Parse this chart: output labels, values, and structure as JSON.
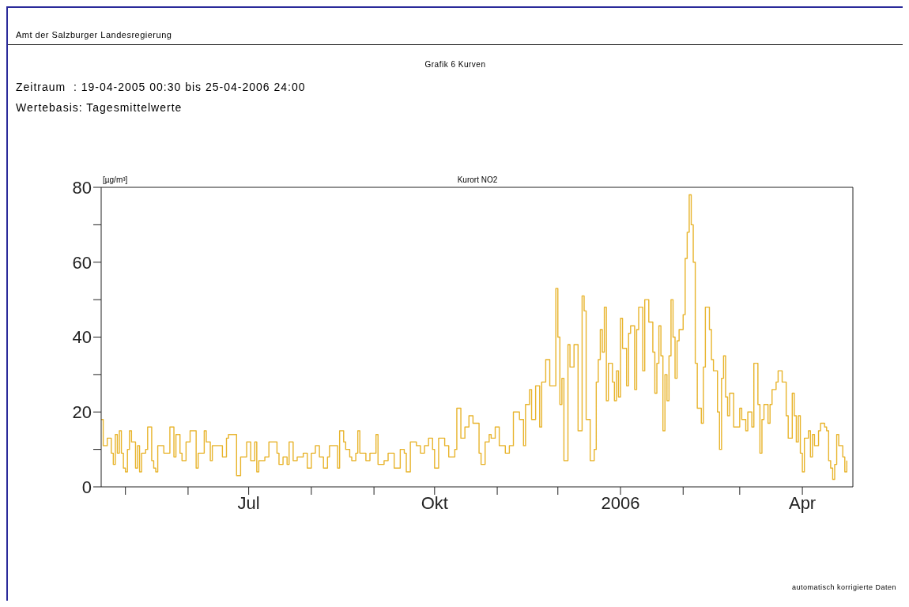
{
  "chart_data": {
    "type": "step",
    "title": "Kurort NO2",
    "subtitle": "Grafik 6 Kurven",
    "ylabel": "[µg/m³]",
    "annotations": [
      "Amt der Salzburger Landesregierung",
      "Zeitraum  : 19-04-2005 00:30 bis 25-04-2006 24:00",
      "Wertebasis: Tagesmittelwerte",
      "automatisch korrigierte Daten"
    ],
    "color": "#e8b42c",
    "marker": "none",
    "line_style": "solid",
    "xlim": [
      "2005-04-19",
      "2006-04-26"
    ],
    "xticks": [
      {
        "value": "2005-05-01",
        "label": null
      },
      {
        "value": "2005-06-01",
        "label": null
      },
      {
        "value": "2005-07-01",
        "label": "Jul"
      },
      {
        "value": "2005-08-01",
        "label": null
      },
      {
        "value": "2005-09-01",
        "label": null
      },
      {
        "value": "2005-10-01",
        "label": "Okt"
      },
      {
        "value": "2005-11-01",
        "label": null
      },
      {
        "value": "2005-12-01",
        "label": null
      },
      {
        "value": "2006-01-01",
        "label": "2006"
      },
      {
        "value": "2006-02-01",
        "label": null
      },
      {
        "value": "2006-03-01",
        "label": null
      },
      {
        "value": "2006-04-01",
        "label": "Apr"
      }
    ],
    "ylim": [
      0,
      80
    ],
    "yticks": [
      0,
      {
        "value": 10,
        "label": null
      },
      20,
      {
        "value": 30,
        "label": null
      },
      40,
      {
        "value": 50,
        "label": null
      },
      60,
      {
        "value": 70,
        "label": null
      },
      80
    ],
    "x": [
      "2005-04-19",
      "2005-04-20",
      "2005-04-22",
      "2005-04-24",
      "2005-04-25",
      "2005-04-26",
      "2005-04-27",
      "2005-04-28",
      "2005-04-29",
      "2005-04-30",
      "2005-05-01",
      "2005-05-02",
      "2005-05-03",
      "2005-05-04",
      "2005-05-06",
      "2005-05-07",
      "2005-05-08",
      "2005-05-09",
      "2005-05-11",
      "2005-05-12",
      "2005-05-14",
      "2005-05-15",
      "2005-05-16",
      "2005-05-17",
      "2005-05-20",
      "2005-05-23",
      "2005-05-25",
      "2005-05-26",
      "2005-05-28",
      "2005-05-29",
      "2005-05-31",
      "2005-06-02",
      "2005-06-05",
      "2005-06-06",
      "2005-06-09",
      "2005-06-10",
      "2005-06-12",
      "2005-06-13",
      "2005-06-16",
      "2005-06-18",
      "2005-06-20",
      "2005-06-21",
      "2005-06-25",
      "2005-06-27",
      "2005-06-30",
      "2005-07-02",
      "2005-07-04",
      "2005-07-05",
      "2005-07-06",
      "2005-07-09",
      "2005-07-11",
      "2005-07-15",
      "2005-07-16",
      "2005-07-18",
      "2005-07-20",
      "2005-07-21",
      "2005-07-23",
      "2005-07-25",
      "2005-07-28",
      "2005-07-30",
      "2005-08-01",
      "2005-08-03",
      "2005-08-05",
      "2005-08-07",
      "2005-08-09",
      "2005-08-10",
      "2005-08-13",
      "2005-08-14",
      "2005-08-15",
      "2005-08-17",
      "2005-08-18",
      "2005-08-20",
      "2005-08-21",
      "2005-08-23",
      "2005-08-24",
      "2005-08-25",
      "2005-08-28",
      "2005-08-30",
      "2005-09-02",
      "2005-09-03",
      "2005-09-06",
      "2005-09-08",
      "2005-09-11",
      "2005-09-14",
      "2005-09-16",
      "2005-09-17",
      "2005-09-19",
      "2005-09-22",
      "2005-09-24",
      "2005-09-26",
      "2005-09-28",
      "2005-09-30",
      "2005-10-01",
      "2005-10-03",
      "2005-10-06",
      "2005-10-08",
      "2005-10-11",
      "2005-10-12",
      "2005-10-14",
      "2005-10-16",
      "2005-10-18",
      "2005-10-20",
      "2005-10-23",
      "2005-10-24",
      "2005-10-26",
      "2005-10-28",
      "2005-10-29",
      "2005-10-31",
      "2005-11-02",
      "2005-11-05",
      "2005-11-07",
      "2005-11-09",
      "2005-11-12",
      "2005-11-14",
      "2005-11-15",
      "2005-11-17",
      "2005-11-18",
      "2005-11-20",
      "2005-11-22",
      "2005-11-23",
      "2005-11-25",
      "2005-11-27",
      "2005-11-30",
      "2005-12-01",
      "2005-12-02",
      "2005-12-03",
      "2005-12-04",
      "2005-12-06",
      "2005-12-07",
      "2005-12-09",
      "2005-12-11",
      "2005-12-13",
      "2005-12-14",
      "2005-12-15",
      "2005-12-17",
      "2005-12-19",
      "2005-12-20",
      "2005-12-21",
      "2005-12-22",
      "2005-12-23",
      "2005-12-24",
      "2005-12-25",
      "2005-12-26",
      "2005-12-28",
      "2005-12-29",
      "2005-12-30",
      "2005-12-31",
      "2006-01-01",
      "2006-01-02",
      "2006-01-04",
      "2006-01-05",
      "2006-01-06",
      "2006-01-08",
      "2006-01-09",
      "2006-01-10",
      "2006-01-12",
      "2006-01-13",
      "2006-01-15",
      "2006-01-17",
      "2006-01-18",
      "2006-01-19",
      "2006-01-20",
      "2006-01-21",
      "2006-01-22",
      "2006-01-23",
      "2006-01-24",
      "2006-01-25",
      "2006-01-26",
      "2006-01-27",
      "2006-01-28",
      "2006-01-29",
      "2006-01-30",
      "2006-02-01",
      "2006-02-02",
      "2006-02-03",
      "2006-02-04",
      "2006-02-05",
      "2006-02-06",
      "2006-02-07",
      "2006-02-08",
      "2006-02-10",
      "2006-02-11",
      "2006-02-12",
      "2006-02-14",
      "2006-02-15",
      "2006-02-16",
      "2006-02-18",
      "2006-02-19",
      "2006-02-20",
      "2006-02-21",
      "2006-02-22",
      "2006-02-23",
      "2006-02-24",
      "2006-02-26",
      "2006-02-27",
      "2006-03-01",
      "2006-03-02",
      "2006-03-04",
      "2006-03-05",
      "2006-03-07",
      "2006-03-08",
      "2006-03-10",
      "2006-03-11",
      "2006-03-12",
      "2006-03-13",
      "2006-03-15",
      "2006-03-16",
      "2006-03-17",
      "2006-03-19",
      "2006-03-20",
      "2006-03-22",
      "2006-03-24",
      "2006-03-25",
      "2006-03-27",
      "2006-03-28",
      "2006-03-29",
      "2006-03-30",
      "2006-03-31",
      "2006-04-01",
      "2006-04-02",
      "2006-04-04",
      "2006-04-05",
      "2006-04-06",
      "2006-04-07",
      "2006-04-09",
      "2006-04-10",
      "2006-04-12",
      "2006-04-13",
      "2006-04-14",
      "2006-04-15",
      "2006-04-16",
      "2006-04-17",
      "2006-04-18",
      "2006-04-19",
      "2006-04-21",
      "2006-04-22",
      "2006-04-23"
    ],
    "values": [
      18,
      11,
      13,
      9,
      6,
      14,
      9,
      15,
      9,
      5,
      4,
      10,
      15,
      12,
      5,
      11,
      4,
      9,
      10,
      16,
      7,
      5,
      4,
      11,
      9,
      16,
      8,
      14,
      9,
      7,
      12,
      15,
      5,
      9,
      15,
      12,
      7,
      11,
      11,
      8,
      13,
      14,
      3,
      8,
      12,
      7,
      12,
      4,
      7,
      8,
      12,
      9,
      6,
      8,
      6,
      12,
      7,
      8,
      9,
      5,
      9,
      11,
      8,
      5,
      8,
      11,
      11,
      5,
      15,
      12,
      10,
      8,
      7,
      9,
      15,
      9,
      7,
      9,
      14,
      6,
      7,
      9,
      5,
      10,
      9,
      4,
      12,
      11,
      9,
      11,
      13,
      10,
      5,
      13,
      11,
      8,
      10,
      21,
      13,
      16,
      19,
      17,
      9,
      6,
      12,
      14,
      13,
      16,
      11,
      9,
      11,
      20,
      18,
      11,
      22,
      26,
      18,
      27,
      16,
      28,
      34,
      27,
      53,
      40,
      22,
      29,
      7,
      38,
      32,
      38,
      15,
      51,
      47,
      18,
      7,
      10,
      28,
      34,
      42,
      36,
      48,
      23,
      33,
      28,
      23,
      31,
      24,
      45,
      37,
      27,
      41,
      43,
      26,
      42,
      48,
      31,
      50,
      44,
      36,
      25,
      33,
      43,
      35,
      15,
      30,
      23,
      35,
      50,
      40,
      29,
      39,
      42,
      46,
      61,
      68,
      78,
      70,
      60,
      33,
      21,
      17,
      32,
      48,
      42,
      34,
      31,
      20,
      10,
      29,
      35,
      24,
      19,
      25,
      16,
      16,
      21,
      18,
      15,
      20,
      16,
      33,
      22,
      9,
      18,
      22,
      17,
      22,
      26,
      28,
      31,
      28,
      19,
      13,
      25,
      19,
      12,
      19,
      9,
      4,
      13,
      15,
      8,
      14,
      11,
      15,
      17,
      16,
      15,
      7,
      5,
      2,
      6,
      14,
      11,
      8,
      4,
      7
    ]
  }
}
